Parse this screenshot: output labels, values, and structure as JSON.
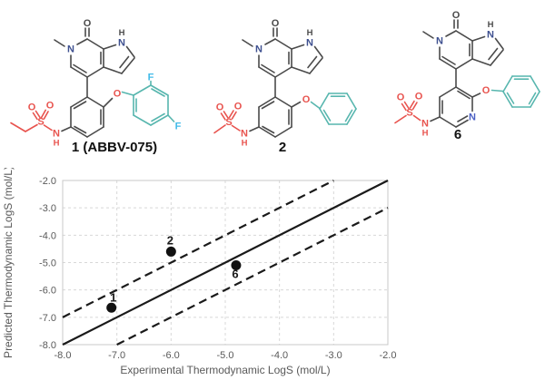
{
  "atoms": {
    "O": "O",
    "N": "N",
    "H": "H",
    "S": "S",
    "F": "F"
  },
  "molecules": [
    {
      "id": "1",
      "caption": "1 (ABBV-075)"
    },
    {
      "id": "2",
      "caption": "2"
    },
    {
      "id": "6",
      "caption": "6"
    }
  ],
  "chart_data": {
    "type": "scatter",
    "xlabel": "Experimental Thermodynamic LogS (mol/L)",
    "ylabel": "Predicted Thermodynamic LogS (mol/L)",
    "xlim": [
      -8.0,
      -2.0
    ],
    "ylim": [
      -8.0,
      -2.0
    ],
    "x_ticks": [
      -8.0,
      -7.0,
      -6.0,
      -5.0,
      -4.0,
      -3.0,
      -2.0
    ],
    "y_ticks": [
      -8.0,
      -7.0,
      -6.0,
      -5.0,
      -4.0,
      -3.0,
      -2.0
    ],
    "grid": true,
    "legend": false,
    "reference_lines": [
      {
        "name": "identity",
        "offset": 0,
        "style": "solid"
      },
      {
        "name": "plus-one-log-unit",
        "offset": 1,
        "style": "dashed"
      },
      {
        "name": "minus-one-log-unit",
        "offset": -1,
        "style": "dashed"
      }
    ],
    "points": [
      {
        "label": "1",
        "x": -7.1,
        "y": -6.65,
        "label_offset": [
          2,
          -7
        ]
      },
      {
        "label": "2",
        "x": -6.0,
        "y": -4.6,
        "label_offset": [
          -1,
          -8
        ]
      },
      {
        "label": "6",
        "x": -4.8,
        "y": -5.1,
        "label_offset": [
          -1,
          14
        ]
      }
    ]
  },
  "colors": {
    "bond": "#4a4a4a",
    "sulfonamide_red": "#e8534e",
    "aryl_teal": "#57b6ae",
    "fluorine_cyan": "#41bbe9",
    "nitrogen_blue": "#3d4f8f",
    "pyridine_nitrogen_blue": "#4a5fc4",
    "axis_text": "#595959",
    "gridline": "#d8d8d8",
    "plot_border": "#c8c8c8",
    "reference_line": "#1a1a1a",
    "point": "#111111"
  }
}
